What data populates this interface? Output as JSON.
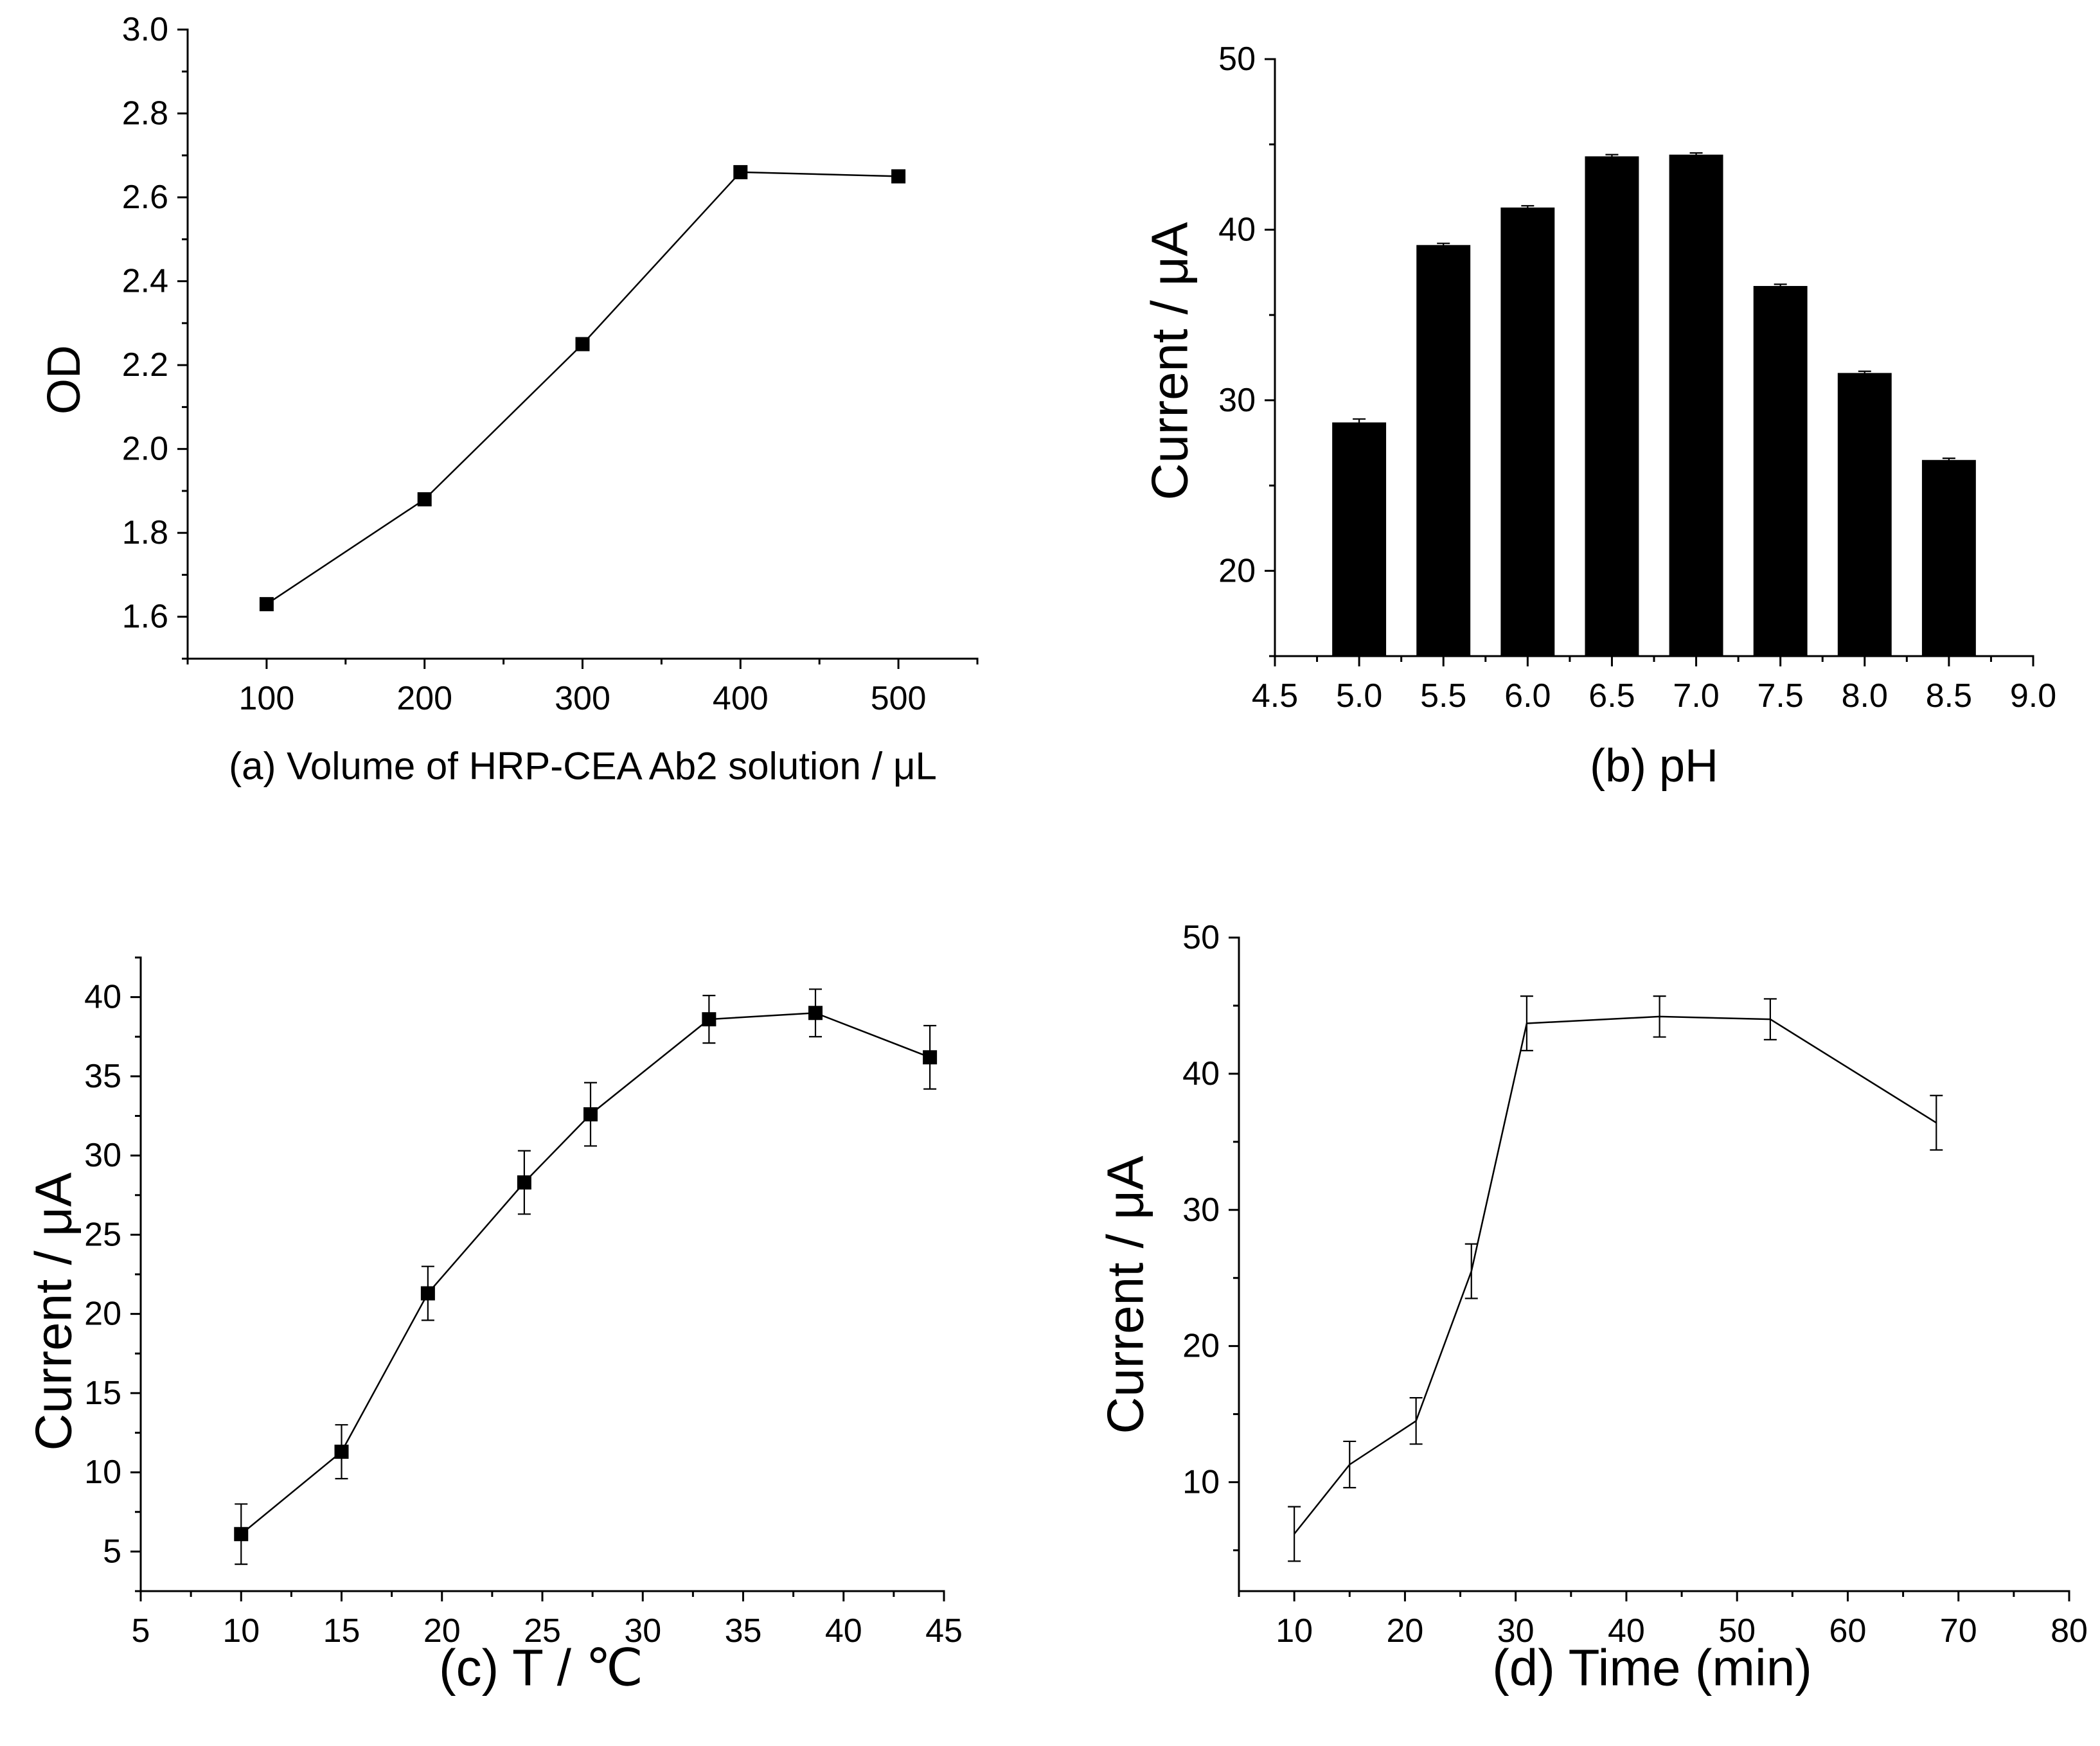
{
  "chart_data": [
    {
      "type": "line",
      "xlabel": "(a) Volume of HRP-CEA Ab2 solution / μL",
      "ylabel": "OD",
      "xlim": [
        50,
        550
      ],
      "ylim": [
        1.5,
        3.0
      ],
      "xtick_labels": [
        "100",
        "200",
        "300",
        "400",
        "500"
      ],
      "ytick_labels": [
        "1.6",
        "1.8",
        "2.0",
        "2.2",
        "2.4",
        "2.6",
        "2.8",
        "3.0"
      ],
      "x_minor_step": 50,
      "y_minor_step": 0.1,
      "grid": false,
      "color": "#000000",
      "x": [
        100,
        200,
        300,
        400,
        500
      ],
      "series": [
        {
          "values": [
            1.63,
            1.88,
            2.25,
            2.66,
            2.65
          ],
          "marker": "square"
        }
      ]
    },
    {
      "type": "bar",
      "xlabel": "(b) pH",
      "ylabel": "Current / μA",
      "xlim": [
        4.5,
        9.0
      ],
      "ylim": [
        15,
        50
      ],
      "xtick_labels": [
        "4.5",
        "5.0",
        "5.5",
        "6.0",
        "6.5",
        "7.0",
        "7.5",
        "8.0",
        "8.5",
        "9.0"
      ],
      "ytick_labels": [
        "20",
        "30",
        "40",
        "50"
      ],
      "x_minor_step": 0.25,
      "y_minor_step": 5,
      "grid": false,
      "color": "#000000",
      "x": [
        5.0,
        5.5,
        6.0,
        6.5,
        7.0,
        7.5,
        8.0,
        8.5
      ],
      "values": [
        28.7,
        39.1,
        41.3,
        44.3,
        44.4,
        36.7,
        31.6,
        26.5
      ],
      "errors": [
        0.2,
        0.1,
        0.1,
        0.1,
        0.1,
        0.1,
        0.1,
        0.1
      ]
    },
    {
      "type": "line",
      "xlabel": "(c) T / ℃",
      "ylabel": "Current / μA",
      "xlim": [
        5,
        45
      ],
      "ylim": [
        2.5,
        42.5
      ],
      "xtick_labels": [
        "5",
        "10",
        "15",
        "20",
        "25",
        "30",
        "35",
        "40",
        "45"
      ],
      "ytick_labels": [
        "5",
        "10",
        "15",
        "20",
        "25",
        "30",
        "35",
        "40"
      ],
      "x_minor_step": 2.5,
      "y_minor_step": 2.5,
      "grid": false,
      "color": "#000000",
      "x": [
        10,
        15,
        19.3,
        24.1,
        27.4,
        33.3,
        38.6,
        44.3
      ],
      "series": [
        {
          "values": [
            6.1,
            11.3,
            21.3,
            28.3,
            32.6,
            38.6,
            39.0,
            36.2
          ],
          "errors": [
            1.9,
            1.7,
            1.7,
            2.0,
            2.0,
            1.5,
            1.5,
            2.0
          ],
          "marker": "square"
        }
      ]
    },
    {
      "type": "line",
      "xlabel": "(d) Time (min)",
      "ylabel": "Current / μA",
      "xlim": [
        5,
        80
      ],
      "ylim": [
        2,
        50
      ],
      "xtick_labels": [
        "10",
        "20",
        "30",
        "40",
        "50",
        "60",
        "70",
        "80"
      ],
      "ytick_labels": [
        "10",
        "20",
        "30",
        "40",
        "50"
      ],
      "x_minor_step": 5,
      "y_minor_step": 5,
      "grid": false,
      "color": "#000000",
      "x": [
        10,
        15,
        21,
        26,
        31,
        43,
        53,
        68
      ],
      "series": [
        {
          "values": [
            6.2,
            11.3,
            14.5,
            25.5,
            43.7,
            44.2,
            44.0,
            36.4
          ],
          "errors": [
            2.0,
            1.7,
            1.7,
            2.0,
            2.0,
            1.5,
            1.5,
            2.0
          ],
          "marker": "none"
        }
      ]
    }
  ]
}
